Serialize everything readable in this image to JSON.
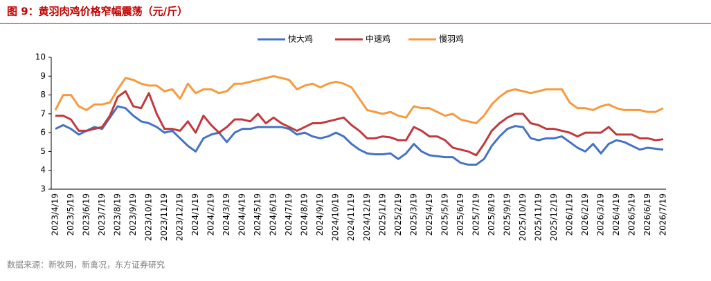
{
  "chart_data": {
    "type": "line",
    "title": "图 9：黄羽肉鸡价格窄幅震荡（元/斤）",
    "source": "数据来源：新牧网，新禽况，东方证券研究",
    "categories": [
      "2023/4/19",
      null,
      "2023/5/19",
      null,
      "2023/6/19",
      null,
      "2023/7/19",
      null,
      "2023/8/19",
      null,
      "2023/9/19",
      null,
      "2023/10/19",
      null,
      "2023/11/19",
      null,
      "2023/12/19",
      null,
      "2024/1/19",
      null,
      "2024/2/19",
      null,
      "2024/3/19",
      null,
      "2024/4/19",
      null,
      "2024/5/19",
      null,
      "2024/6/19",
      null,
      "2024/7/19",
      null,
      "2024/8/19",
      null,
      "2024/9/19",
      null,
      "2024/10/19",
      null,
      "2024/11/19",
      null,
      "2024/12/19",
      null,
      "2025/1/19",
      null,
      "2025/2/19",
      null,
      "2025/3/19",
      null,
      "2025/4/19",
      null,
      "2025/5/19",
      null,
      "2025/6/19",
      null,
      "2025/7/19",
      null,
      "2025/8/19",
      null,
      "2025/9/19",
      null,
      "2025/10/19",
      null,
      "2025/11/19",
      null,
      "2025/12/19",
      null,
      "2026/1/19",
      null,
      "2026/2/19",
      null,
      "2026/3/19",
      null,
      "2026/4/19",
      null,
      "2026/5/19",
      null,
      "2026/6/19",
      null,
      "2026/7/19"
    ],
    "series": [
      {
        "name": "快大鸡",
        "color": "#4472c4",
        "values": [
          6.2,
          6.4,
          6.2,
          5.9,
          6.1,
          6.3,
          6.2,
          6.8,
          7.4,
          7.3,
          6.9,
          6.6,
          6.5,
          6.3,
          6.0,
          6.1,
          5.7,
          5.3,
          5.0,
          5.7,
          5.9,
          6.0,
          5.5,
          6.0,
          6.2,
          6.2,
          6.3,
          6.3,
          6.3,
          6.3,
          6.2,
          5.9,
          6.0,
          5.8,
          5.7,
          5.8,
          6.0,
          5.8,
          5.4,
          5.1,
          4.9,
          4.85,
          4.85,
          4.9,
          4.6,
          4.9,
          5.4,
          5.0,
          4.8,
          4.75,
          4.7,
          4.7,
          4.4,
          4.3,
          4.3,
          4.6,
          5.3,
          5.8,
          6.2,
          6.35,
          6.3,
          5.7,
          5.6,
          5.7,
          5.7,
          5.8,
          5.5,
          5.2,
          5.0,
          5.4,
          4.9,
          5.4,
          5.6,
          5.5,
          5.3,
          5.1,
          5.2,
          5.15,
          5.1
        ]
      },
      {
        "name": "中速鸡",
        "color": "#c0393b",
        "values": [
          6.9,
          6.9,
          6.7,
          6.1,
          6.1,
          6.2,
          6.3,
          6.9,
          7.9,
          8.2,
          7.4,
          7.3,
          8.1,
          7.0,
          6.2,
          6.2,
          6.1,
          6.6,
          6.0,
          6.9,
          6.4,
          6.0,
          6.3,
          6.7,
          6.7,
          6.6,
          7.0,
          6.5,
          6.8,
          6.5,
          6.3,
          6.1,
          6.3,
          6.5,
          6.5,
          6.6,
          6.7,
          6.8,
          6.4,
          6.1,
          5.7,
          5.7,
          5.8,
          5.75,
          5.6,
          5.6,
          6.3,
          6.1,
          5.8,
          5.8,
          5.6,
          5.2,
          5.1,
          5.0,
          4.8,
          5.4,
          6.1,
          6.5,
          6.8,
          7.0,
          7.0,
          6.5,
          6.4,
          6.2,
          6.2,
          6.1,
          6.0,
          5.8,
          6.0,
          6.0,
          6.0,
          6.3,
          5.9,
          5.9,
          5.9,
          5.7,
          5.7,
          5.6,
          5.65
        ]
      },
      {
        "name": "慢羽鸡",
        "color": "#f79a3e",
        "values": [
          7.2,
          8.0,
          8.0,
          7.4,
          7.2,
          7.5,
          7.5,
          7.6,
          8.3,
          8.9,
          8.8,
          8.6,
          8.5,
          8.5,
          8.2,
          8.3,
          7.8,
          8.6,
          8.1,
          8.3,
          8.3,
          8.1,
          8.2,
          8.6,
          8.6,
          8.7,
          8.8,
          8.9,
          9.0,
          8.9,
          8.8,
          8.3,
          8.5,
          8.6,
          8.4,
          8.6,
          8.7,
          8.6,
          8.4,
          7.8,
          7.2,
          7.1,
          7.0,
          7.1,
          6.9,
          6.8,
          7.4,
          7.3,
          7.3,
          7.1,
          6.9,
          7.0,
          6.7,
          6.6,
          6.5,
          6.9,
          7.5,
          7.9,
          8.2,
          8.3,
          8.2,
          8.1,
          8.2,
          8.3,
          8.3,
          8.3,
          7.6,
          7.3,
          7.3,
          7.2,
          7.4,
          7.5,
          7.3,
          7.2,
          7.2,
          7.2,
          7.1,
          7.1,
          7.3
        ]
      }
    ],
    "ylim": [
      3,
      10
    ],
    "yticks": [
      3,
      4,
      5,
      6,
      7,
      8,
      9,
      10
    ],
    "grid": false,
    "legend": "top"
  }
}
